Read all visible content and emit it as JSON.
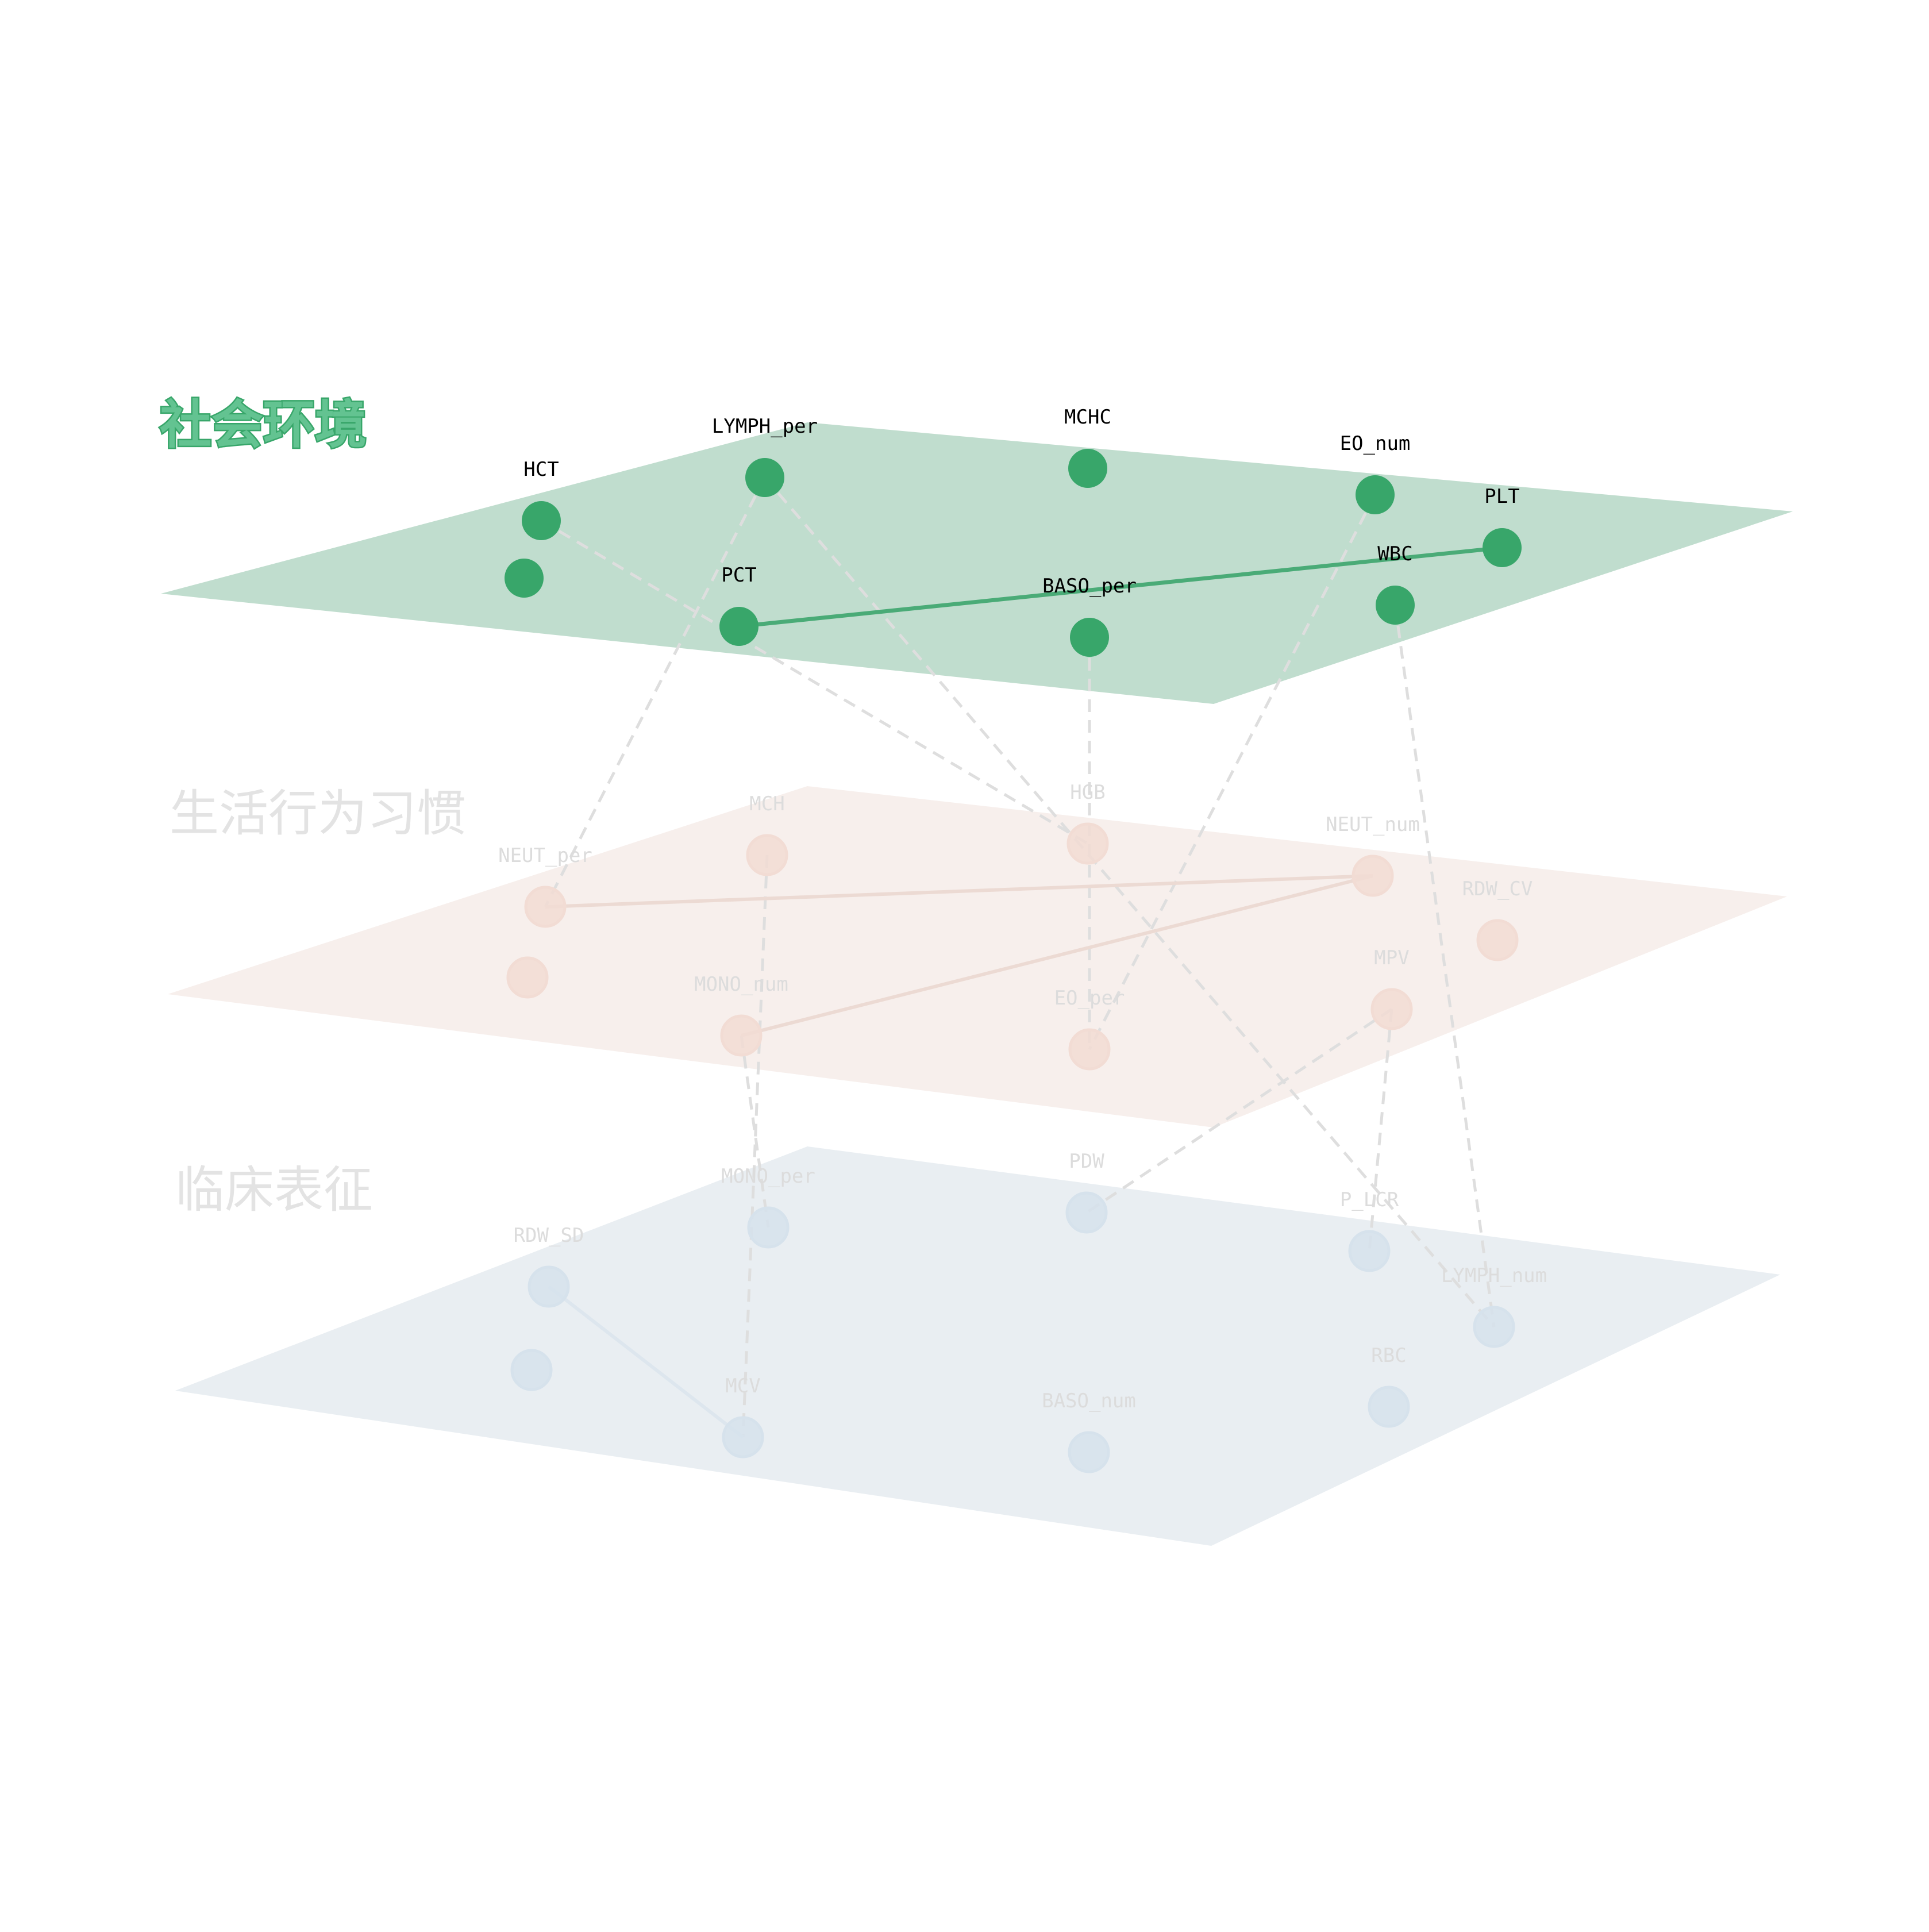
{
  "diagram": {
    "layers": [
      {
        "id": "social",
        "title": "社会环境",
        "fill": "#c0ddce",
        "node_color": "#38a66a",
        "label_color": "#000000",
        "active": true,
        "nodes": [
          {
            "id": "HCT",
            "label": "HCT"
          },
          {
            "id": "social_unlabeled",
            "label": ""
          },
          {
            "id": "LYMPH_per",
            "label": "LYMPH_per"
          },
          {
            "id": "PCT",
            "label": "PCT"
          },
          {
            "id": "MCHC",
            "label": "MCHC"
          },
          {
            "id": "BASO_per",
            "label": "BASO_per"
          },
          {
            "id": "EO_num",
            "label": "EO_num"
          },
          {
            "id": "WBC",
            "label": "WBC"
          },
          {
            "id": "PLT",
            "label": "PLT"
          }
        ]
      },
      {
        "id": "behavior",
        "title": "生活行为习惯",
        "fill": "#f7efec",
        "node_color": "#f2dcd4",
        "label_color": "#dcdcdc",
        "active": false,
        "nodes": [
          {
            "id": "NEUT_per",
            "label": "NEUT_per"
          },
          {
            "id": "behavior_unlabeled",
            "label": ""
          },
          {
            "id": "MCH",
            "label": "MCH"
          },
          {
            "id": "MONO_num",
            "label": "MONO_num"
          },
          {
            "id": "HGB",
            "label": "HGB"
          },
          {
            "id": "EO_per",
            "label": "EO_per"
          },
          {
            "id": "NEUT_num",
            "label": "NEUT_num"
          },
          {
            "id": "MPV",
            "label": "MPV"
          },
          {
            "id": "RDW_CV",
            "label": "RDW_CV"
          }
        ]
      },
      {
        "id": "clinical",
        "title": "临床表征",
        "fill": "#e9eef2",
        "node_color": "#d6e2ec",
        "label_color": "#dcdcdc",
        "active": false,
        "nodes": [
          {
            "id": "RDW_SD",
            "label": "RDW_SD"
          },
          {
            "id": "clinical_unlabeled",
            "label": ""
          },
          {
            "id": "MONO_per",
            "label": "MONO_per"
          },
          {
            "id": "MCV",
            "label": "MCV"
          },
          {
            "id": "PDW",
            "label": "PDW"
          },
          {
            "id": "BASO_num",
            "label": "BASO_num"
          },
          {
            "id": "P_LCR",
            "label": "P_LCR"
          },
          {
            "id": "RBC",
            "label": "RBC"
          },
          {
            "id": "LYMPH_num",
            "label": "LYMPH_num"
          }
        ]
      }
    ],
    "intra_edges": [
      {
        "source": "PCT",
        "target": "PLT",
        "layer": "social"
      },
      {
        "source": "NEUT_per",
        "target": "NEUT_num",
        "layer": "behavior"
      },
      {
        "source": "MONO_num",
        "target": "NEUT_num",
        "layer": "behavior"
      },
      {
        "source": "RDW_SD",
        "target": "MCV",
        "layer": "clinical"
      }
    ],
    "inter_edges": [
      {
        "source": "LYMPH_per",
        "target": "NEUT_per"
      },
      {
        "source": "LYMPH_per",
        "target": "LYMPH_num"
      },
      {
        "source": "HCT",
        "target": "HGB"
      },
      {
        "source": "BASO_per",
        "target": "EO_per"
      },
      {
        "source": "EO_num",
        "target": "EO_per"
      },
      {
        "source": "WBC",
        "target": "LYMPH_num"
      },
      {
        "source": "MCH",
        "target": "MCV"
      },
      {
        "source": "MONO_num",
        "target": "MONO_per"
      },
      {
        "source": "MPV",
        "target": "PDW"
      },
      {
        "source": "MPV",
        "target": "P_LCR"
      }
    ],
    "colors": {
      "active_edge": "#4aab77",
      "inactive_edge": "#ecdad3",
      "clinical_edge": "#dde6ee",
      "inter_edge": "#dedede",
      "title_inactive": "#e3e3e3",
      "title_active_fill": "#63c391",
      "title_active_stroke": "#38a66a"
    }
  }
}
